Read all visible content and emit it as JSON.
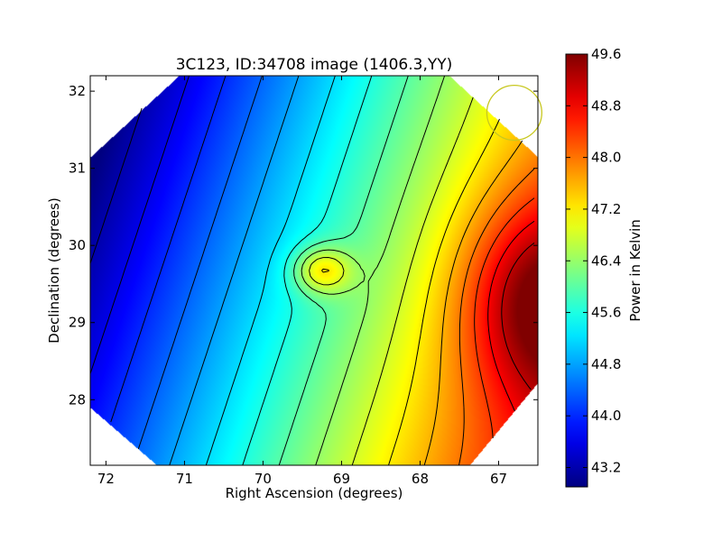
{
  "chart_data": {
    "type": "heatmap",
    "title": "3C123, ID:34708 image (1406.3,YY)",
    "xlabel": "Right Ascension (degrees)",
    "ylabel": "Declination (degrees)",
    "x_inverted": true,
    "xlim": [
      72.2,
      66.5
    ],
    "ylim": [
      27.15,
      32.2
    ],
    "x_ticks": [
      72,
      71,
      70,
      69,
      68,
      67
    ],
    "x_tick_labels": [
      "72",
      "71",
      "70",
      "69",
      "68",
      "67"
    ],
    "y_ticks": [
      28,
      29,
      30,
      31,
      32
    ],
    "y_tick_labels": [
      "28",
      "29",
      "30",
      "31",
      "32"
    ],
    "colormap": "jet",
    "colorbar": {
      "label": "Power in Kelvin",
      "min": 42.9,
      "max": 49.6,
      "ticks": [
        43.2,
        44.0,
        44.8,
        45.6,
        46.4,
        47.2,
        48.0,
        48.8,
        49.6
      ],
      "tick_labels": [
        "43.2",
        "44.0",
        "44.8",
        "45.6",
        "46.4",
        "47.2",
        "48.0",
        "48.8",
        "49.6"
      ]
    },
    "contours": "black lines",
    "features": [
      {
        "name": "minimum",
        "ra": 72.2,
        "dec": 30.3,
        "value": 42.9
      },
      {
        "name": "peak",
        "ra": 66.5,
        "dec": 29.3,
        "value": 49.6
      },
      {
        "name": "local-peak",
        "ra": 69.25,
        "dec": 29.68,
        "value": 47.6
      }
    ],
    "beam_circle": {
      "ra": 66.8,
      "dec": 31.72,
      "radius_deg": 0.35,
      "color": "#c8c820"
    }
  }
}
